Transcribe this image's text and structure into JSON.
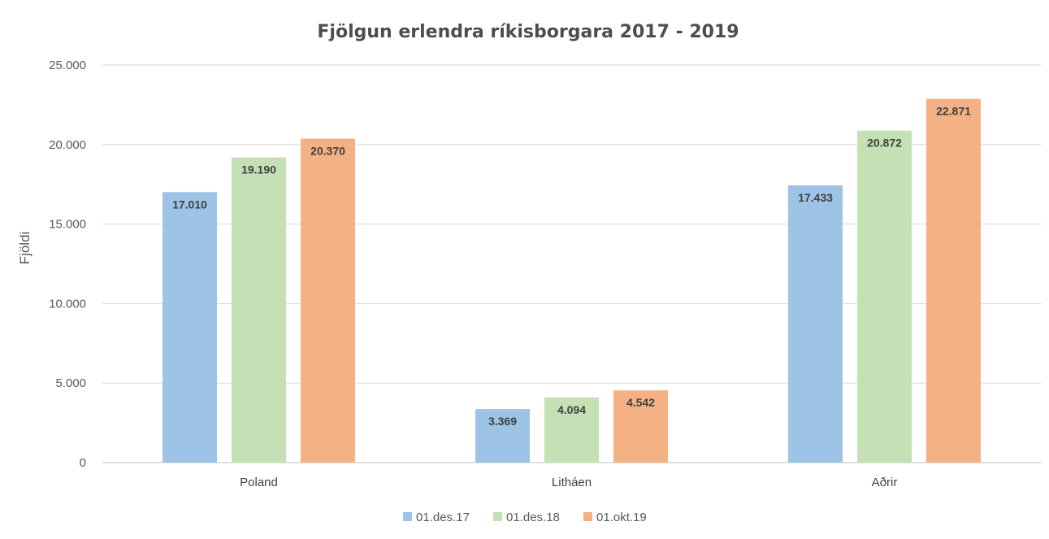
{
  "chart_data": {
    "type": "bar",
    "title": "Fjölgun erlendra ríkisborgara 2017 - 2019",
    "ylabel": "Fjöldi",
    "xlabel": "",
    "categories": [
      "Poland",
      "Litháen",
      "Aðrir"
    ],
    "series": [
      {
        "name": "01.des.17",
        "color": "#9dc3e6",
        "values": [
          17010,
          3369,
          17433
        ],
        "labels": [
          "17.010",
          "3.369",
          "17.433"
        ]
      },
      {
        "name": "01.des.18",
        "color": "#c5e0b4",
        "values": [
          19190,
          4094,
          20872
        ],
        "labels": [
          "19.190",
          "4.094",
          "20.872"
        ]
      },
      {
        "name": "01.okt.19",
        "color": "#f4b183",
        "values": [
          20370,
          4542,
          22871
        ],
        "labels": [
          "20.370",
          "4.542",
          "22.871"
        ]
      }
    ],
    "ylim": [
      0,
      25000
    ],
    "yticks": [
      0,
      5000,
      10000,
      15000,
      20000,
      25000
    ],
    "ytick_labels": [
      "0",
      "5.000",
      "10.000",
      "15.000",
      "20.000",
      "25.000"
    ],
    "grid": true,
    "legend_position": "bottom"
  }
}
